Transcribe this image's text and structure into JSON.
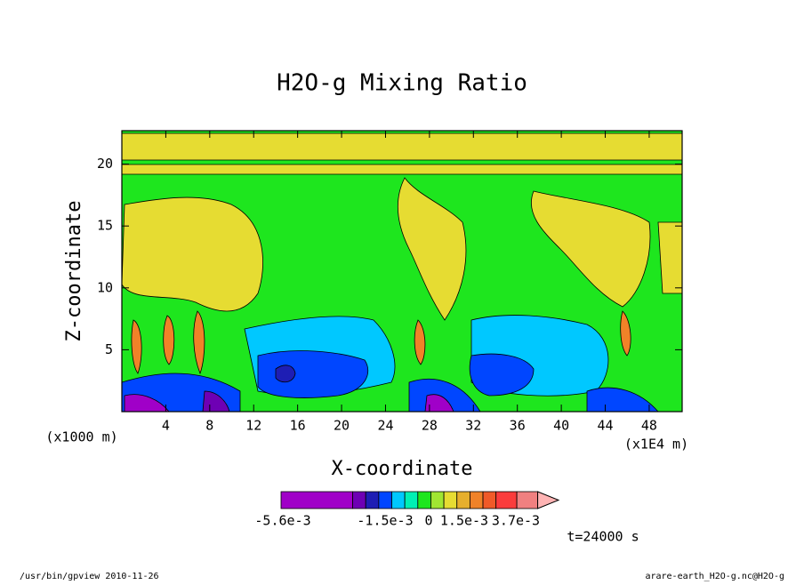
{
  "chart_data": {
    "type": "contour",
    "title": "H2O-g Mixing Ratio",
    "xlabel": "X-coordinate",
    "ylabel": "Z-coordinate",
    "x_unit": "(x1000 m)",
    "x_note": "(x1E4 m)",
    "xlim": [
      0,
      51
    ],
    "xticks": [
      4,
      8,
      12,
      16,
      20,
      24,
      28,
      32,
      36,
      40,
      44,
      48
    ],
    "ylim": [
      0,
      22.7
    ],
    "yticks": [
      5,
      10,
      15,
      20
    ],
    "colorbar": {
      "colors": [
        "#a000c8",
        "#6e00b4",
        "#1e1eb4",
        "#0046ff",
        "#00c8ff",
        "#00f0b4",
        "#1ee61e",
        "#a0e632",
        "#e6dc32",
        "#e6af2d",
        "#f08228",
        "#f05a28",
        "#fa3c3c",
        "#f08080",
        "#ffb4b4"
      ],
      "labels": [
        "-5.6e-3",
        "-1.5e-3",
        "0",
        "1.5e-3",
        "3.7e-3"
      ]
    },
    "time_note": "t=24000 s",
    "footer_left": "/usr/bin/gpview   2010-11-26",
    "footer_right": "arare-earth_H2O-g.nc@H2O-g"
  }
}
